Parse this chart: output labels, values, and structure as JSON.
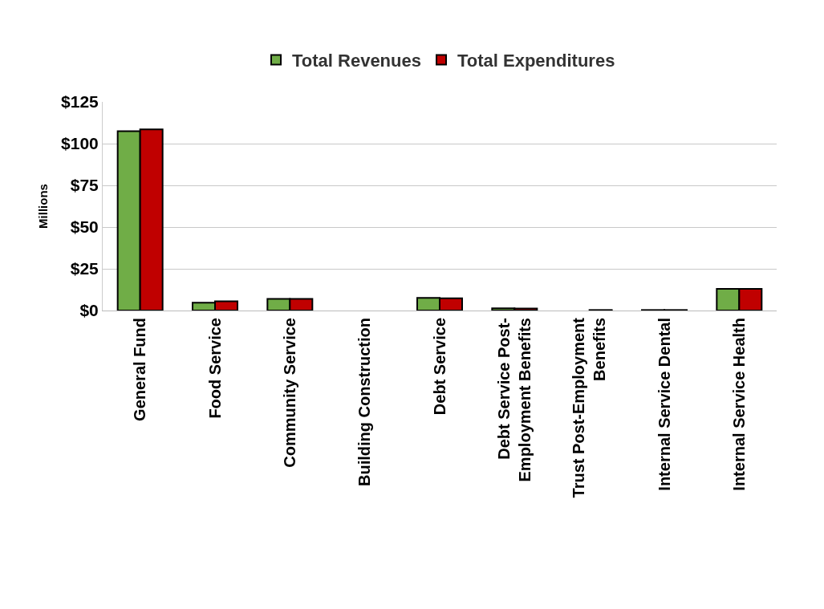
{
  "chart_data": {
    "type": "bar",
    "ylabel": "Millions",
    "categories": [
      "General Fund",
      "Food Service",
      "Community Service",
      "Building Construction",
      "Debt Service",
      "Debt Service Post-Employment Benefits",
      "Trust Post-Employment Benefits",
      "Internal Service Dental",
      "Internal Service Health"
    ],
    "series": [
      {
        "name": "Total Revenues",
        "color": "#70ad47",
        "values": [
          107.5,
          4.7,
          7,
          0,
          7.6,
          1.3,
          0,
          0.3,
          13
        ]
      },
      {
        "name": "Total Expenditures",
        "color": "#c00000",
        "values": [
          108.5,
          5.5,
          7,
          0,
          7.3,
          1.2,
          0.3,
          0.3,
          13
        ]
      }
    ],
    "ylim": [
      0,
      125
    ],
    "yticks": [
      {
        "value": 0,
        "label": "$0"
      },
      {
        "value": 25,
        "label": "$25"
      },
      {
        "value": 50,
        "label": "$50"
      },
      {
        "value": 75,
        "label": "$75"
      },
      {
        "value": 100,
        "label": "$100"
      },
      {
        "value": 125,
        "label": "$125"
      }
    ],
    "grid": "y",
    "legend": "top"
  }
}
